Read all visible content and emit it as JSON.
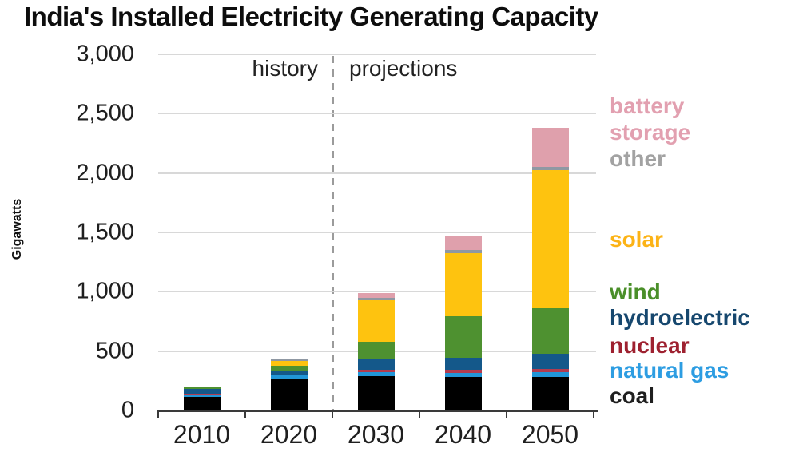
{
  "chart_data": {
    "type": "bar",
    "stacked": true,
    "title": "India's Installed Electricity Generating Capacity",
    "ylabel": "Gigawatts",
    "ylim": [
      0,
      3000
    ],
    "ytick_interval": 500,
    "ytick_labels": [
      "0",
      "500",
      "1,000",
      "1,500",
      "2,000",
      "2,500",
      "3,000"
    ],
    "categories": [
      "2010",
      "2020",
      "2030",
      "2040",
      "2050"
    ],
    "annotations": {
      "history": "history",
      "projections": "projections"
    },
    "divider": {
      "between": [
        "2020",
        "2030"
      ],
      "style": "dashed"
    },
    "legend_position": "right",
    "grid": true,
    "units": "gigawatts",
    "series": [
      {
        "name": "coal",
        "color": "#000000",
        "label_color": "#1f1f1f",
        "values": [
          113,
          272,
          290,
          285,
          281
        ]
      },
      {
        "name": "natural gas",
        "color": "#2196d8",
        "label_color": "#2d9de2",
        "values": [
          25,
          24,
          34,
          34,
          42
        ]
      },
      {
        "name": "nuclear",
        "color": "#b23c50",
        "label_color": "#9e2130",
        "values": [
          4,
          7,
          22,
          25,
          28
        ]
      },
      {
        "name": "hydroelectric",
        "color": "#14588a",
        "label_color": "#16476e",
        "values": [
          40,
          33,
          90,
          101,
          128
        ]
      },
      {
        "name": "wind",
        "color": "#4e9130",
        "label_color": "#4a8f29",
        "values": [
          16,
          39,
          143,
          350,
          383
        ]
      },
      {
        "name": "solar",
        "color": "#fec30f",
        "label_color": "#fcb316",
        "values": [
          1,
          41,
          350,
          533,
          1160
        ]
      },
      {
        "name": "other",
        "color": "#8f98a3",
        "label_color": "#a2a2a2",
        "values": [
          1,
          24,
          22,
          25,
          27
        ]
      },
      {
        "name": "battery storage",
        "color": "#dfa0ac",
        "label_color": "#e2a0b0",
        "values": [
          0,
          0,
          37,
          121,
          333
        ]
      }
    ]
  }
}
